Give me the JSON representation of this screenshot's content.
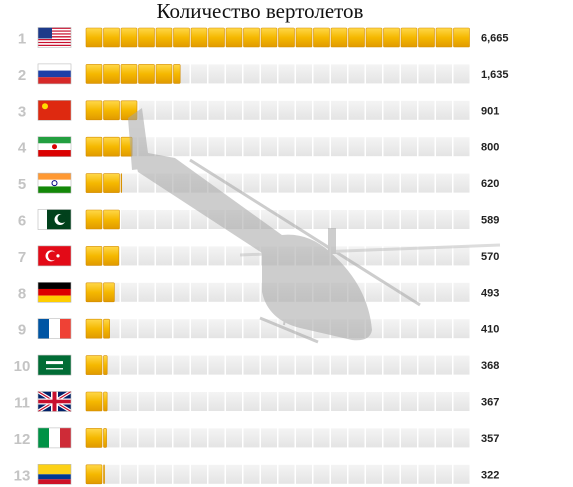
{
  "chart_data": {
    "type": "bar",
    "title": "Количество вертолетов",
    "xlabel": "",
    "ylabel": "",
    "xlim": [
      0,
      6665
    ],
    "grid": false,
    "legend": "none",
    "bar_color": "#f5b800",
    "track_color": "#ececec",
    "rows": [
      {
        "rank": "1",
        "flag": "usa-flag",
        "value": 6665,
        "label": "6,665"
      },
      {
        "rank": "2",
        "flag": "russia-flag",
        "value": 1635,
        "label": "1,635"
      },
      {
        "rank": "3",
        "flag": "china-flag",
        "value": 901,
        "label": "901"
      },
      {
        "rank": "4",
        "flag": "iran-flag",
        "value": 800,
        "label": "800"
      },
      {
        "rank": "5",
        "flag": "india-flag",
        "value": 620,
        "label": "620"
      },
      {
        "rank": "6",
        "flag": "pakistan-flag",
        "value": 589,
        "label": "589"
      },
      {
        "rank": "7",
        "flag": "turkey-flag",
        "value": 570,
        "label": "570"
      },
      {
        "rank": "8",
        "flag": "germany-flag",
        "value": 493,
        "label": "493"
      },
      {
        "rank": "9",
        "flag": "france-flag",
        "value": 410,
        "label": "410"
      },
      {
        "rank": "10",
        "flag": "saudi-arabia-flag",
        "value": 368,
        "label": "368"
      },
      {
        "rank": "11",
        "flag": "uk-flag",
        "value": 367,
        "label": "367"
      },
      {
        "rank": "12",
        "flag": "italy-flag",
        "value": 357,
        "label": "357"
      },
      {
        "rank": "13",
        "flag": "colombia-flag",
        "value": 322,
        "label": "322"
      }
    ]
  },
  "background_image": "helicopter-silhouette"
}
